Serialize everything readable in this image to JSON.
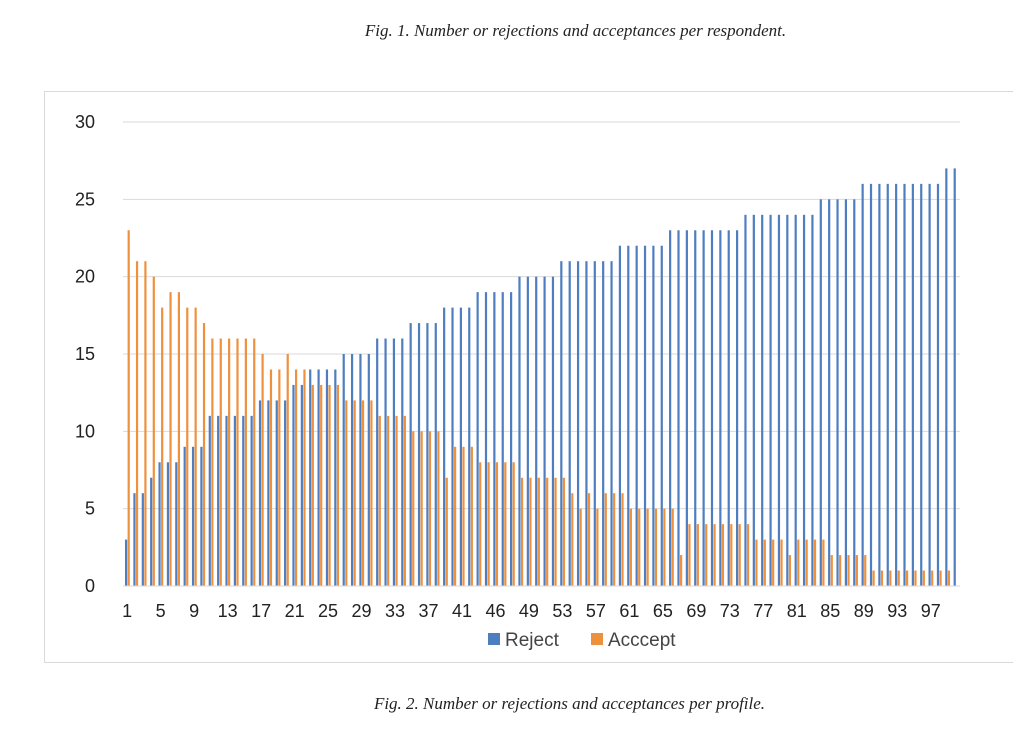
{
  "captions": {
    "top": "Fig. 1. Number or rejections and acceptances per respondent.",
    "bottom": "Fig. 2. Number or rejections and acceptances per profile."
  },
  "colors": {
    "reject": "#4F7EC0",
    "accept": "#EE913F",
    "grid": "#d9d9d9"
  },
  "chart_data": {
    "type": "bar",
    "title": "",
    "xlabel": "",
    "ylabel": "",
    "ylim": [
      0,
      30
    ],
    "yticks": [
      0,
      5,
      10,
      15,
      20,
      25,
      30
    ],
    "x_tick_labels": [
      "1",
      "5",
      "9",
      "13",
      "17",
      "21",
      "25",
      "29",
      "33",
      "37",
      "41",
      "46",
      "49",
      "53",
      "57",
      "61",
      "65",
      "69",
      "73",
      "77",
      "81",
      "85",
      "89",
      "93",
      "97"
    ],
    "legend_position": "bottom",
    "grid": true,
    "categories": [
      1,
      2,
      3,
      4,
      5,
      6,
      7,
      8,
      9,
      10,
      11,
      12,
      13,
      14,
      15,
      16,
      17,
      18,
      19,
      20,
      21,
      22,
      23,
      24,
      25,
      26,
      27,
      28,
      29,
      30,
      31,
      32,
      33,
      34,
      35,
      36,
      37,
      38,
      39,
      40,
      41,
      42,
      43,
      44,
      45,
      46,
      47,
      48,
      49,
      50,
      51,
      52,
      53,
      54,
      55,
      56,
      57,
      58,
      59,
      60,
      61,
      62,
      63,
      64,
      65,
      66,
      67,
      68,
      69,
      70,
      71,
      72,
      73,
      74,
      75,
      76,
      77,
      78,
      79,
      80,
      81,
      82,
      83,
      84,
      85,
      86,
      87,
      88,
      89,
      90,
      91,
      92,
      93,
      94,
      95,
      96,
      97,
      98,
      99,
      100
    ],
    "series": [
      {
        "name": "Reject",
        "values": [
          3,
          6,
          6,
          7,
          8,
          8,
          8,
          9,
          9,
          9,
          11,
          11,
          11,
          11,
          11,
          11,
          12,
          12,
          12,
          12,
          13,
          13,
          14,
          14,
          14,
          14,
          15,
          15,
          15,
          15,
          16,
          16,
          16,
          16,
          17,
          17,
          17,
          17,
          18,
          18,
          18,
          18,
          19,
          19,
          19,
          19,
          19,
          20,
          20,
          20,
          20,
          20,
          21,
          21,
          21,
          21,
          21,
          21,
          21,
          22,
          22,
          22,
          22,
          22,
          22,
          23,
          23,
          23,
          23,
          23,
          23,
          23,
          23,
          23,
          24,
          24,
          24,
          24,
          24,
          24,
          24,
          24,
          24,
          25,
          25,
          25,
          25,
          25,
          26,
          26,
          26,
          26,
          26,
          26,
          26,
          26,
          26,
          26,
          27,
          27
        ]
      },
      {
        "name": "Acccept",
        "values": [
          23,
          21,
          21,
          20,
          18,
          19,
          19,
          18,
          18,
          17,
          16,
          16,
          16,
          16,
          16,
          16,
          15,
          14,
          14,
          15,
          14,
          14,
          13,
          13,
          13,
          13,
          12,
          12,
          12,
          12,
          11,
          11,
          11,
          11,
          10,
          10,
          10,
          10,
          7,
          9,
          9,
          9,
          8,
          8,
          8,
          8,
          8,
          7,
          7,
          7,
          7,
          7,
          7,
          6,
          5,
          6,
          5,
          6,
          6,
          6,
          5,
          5,
          5,
          5,
          5,
          5,
          2,
          4,
          4,
          4,
          4,
          4,
          4,
          4,
          4,
          3,
          3,
          3,
          3,
          2,
          3,
          3,
          3,
          3,
          2,
          2,
          2,
          2,
          2,
          1,
          1,
          1,
          1,
          1,
          1,
          1,
          1,
          1,
          1,
          0
        ]
      }
    ]
  }
}
